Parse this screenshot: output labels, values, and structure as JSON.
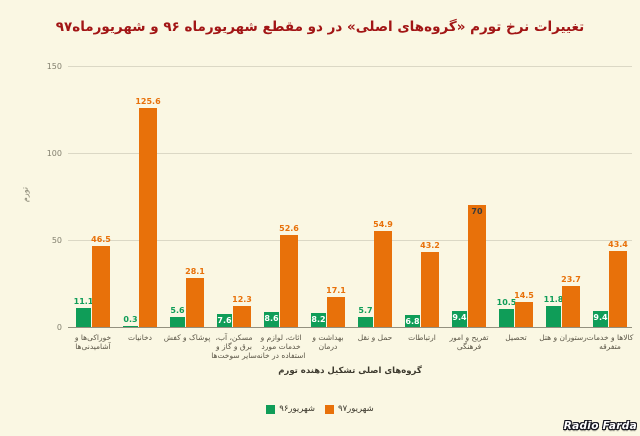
{
  "title": {
    "text": "تغییرات نرخ تورم «گروه‌های اصلی» در دو مقطع شهریورماه ۹۶ و شهریورماه۹۷"
  },
  "watermark": {
    "text": "Radio Farda"
  },
  "colors": {
    "background": "#FAF7E3",
    "title_red": "#A21515",
    "green": "#0F9D58",
    "orange": "#E8710A",
    "gridline": "#DBD8C5",
    "baseline": "#93907F",
    "tick_text": "#83806F",
    "category_text": "#5A5546",
    "axis_title_text": "#3C392D",
    "value_inside_on_green": "#FFFFFF",
    "value_inside_on_orange": "#3C3C3C"
  },
  "chart_data": {
    "type": "bar",
    "title": "تغییرات نرخ تورم «گروه‌های اصلی» در دو مقطع شهریورماه ۹۶ و شهریورماه۹۷",
    "xlabel": "گروه‌های اصلی تشکیل دهنده تورم",
    "ylabel": "تورم",
    "ylim": [
      0,
      150
    ],
    "yticks": [
      0,
      50,
      100,
      150
    ],
    "grid": true,
    "legend_position": "bottom",
    "categories": [
      "خوراکی‌ها و آشامیدنی‌ها",
      "دخانیات",
      "پوشاک و کفش",
      "مسکن، آب، برق و گاز و سایر سوخت‌ها",
      "اثاث، لوازم و خدمات مورد استفاده در خانه",
      "بهداشت و درمان",
      "حمل و نقل",
      "ارتباطات",
      "تفریح و امور فرهنگی",
      "تحصیل",
      "رستوران و هتل",
      "کالاها و خدمات متفرقه"
    ],
    "category_lines": [
      [
        "خوراکی‌ها و",
        "آشامیدنی‌ها"
      ],
      [
        "دخانیات"
      ],
      [
        "پوشاک و کفش"
      ],
      [
        "مسکن، آب،",
        "برق و گاز و",
        "سایر سوخت‌ها"
      ],
      [
        "اثاث، لوازم و",
        "خدمات مورد",
        "استفاده در خانه"
      ],
      [
        "بهداشت و",
        "درمان"
      ],
      [
        "حمل و نقل"
      ],
      [
        "ارتباطات"
      ],
      [
        "تفریح و امور",
        "فرهنگی"
      ],
      [
        "تحصیل"
      ],
      [
        "رستوران و هتل"
      ],
      [
        "کالاها و خدمات",
        "متفرقه"
      ]
    ],
    "series": [
      {
        "name": "شهریور۹۶",
        "color": "#0F9D58",
        "values": [
          11.1,
          0.3,
          5.6,
          7.6,
          8.6,
          8.2,
          5.7,
          6.8,
          9.4,
          10.5,
          11.8,
          9.4
        ],
        "label_inside": [
          false,
          false,
          false,
          true,
          true,
          true,
          false,
          true,
          true,
          false,
          false,
          true
        ]
      },
      {
        "name": "شهریور۹۷",
        "color": "#E8710A",
        "values": [
          46.5,
          125.6,
          28.1,
          12.3,
          52.6,
          17.1,
          54.9,
          43.2,
          70,
          14.5,
          23.7,
          43.4
        ],
        "label_inside": [
          false,
          false,
          false,
          false,
          false,
          false,
          false,
          false,
          true,
          false,
          false,
          false
        ]
      }
    ]
  }
}
